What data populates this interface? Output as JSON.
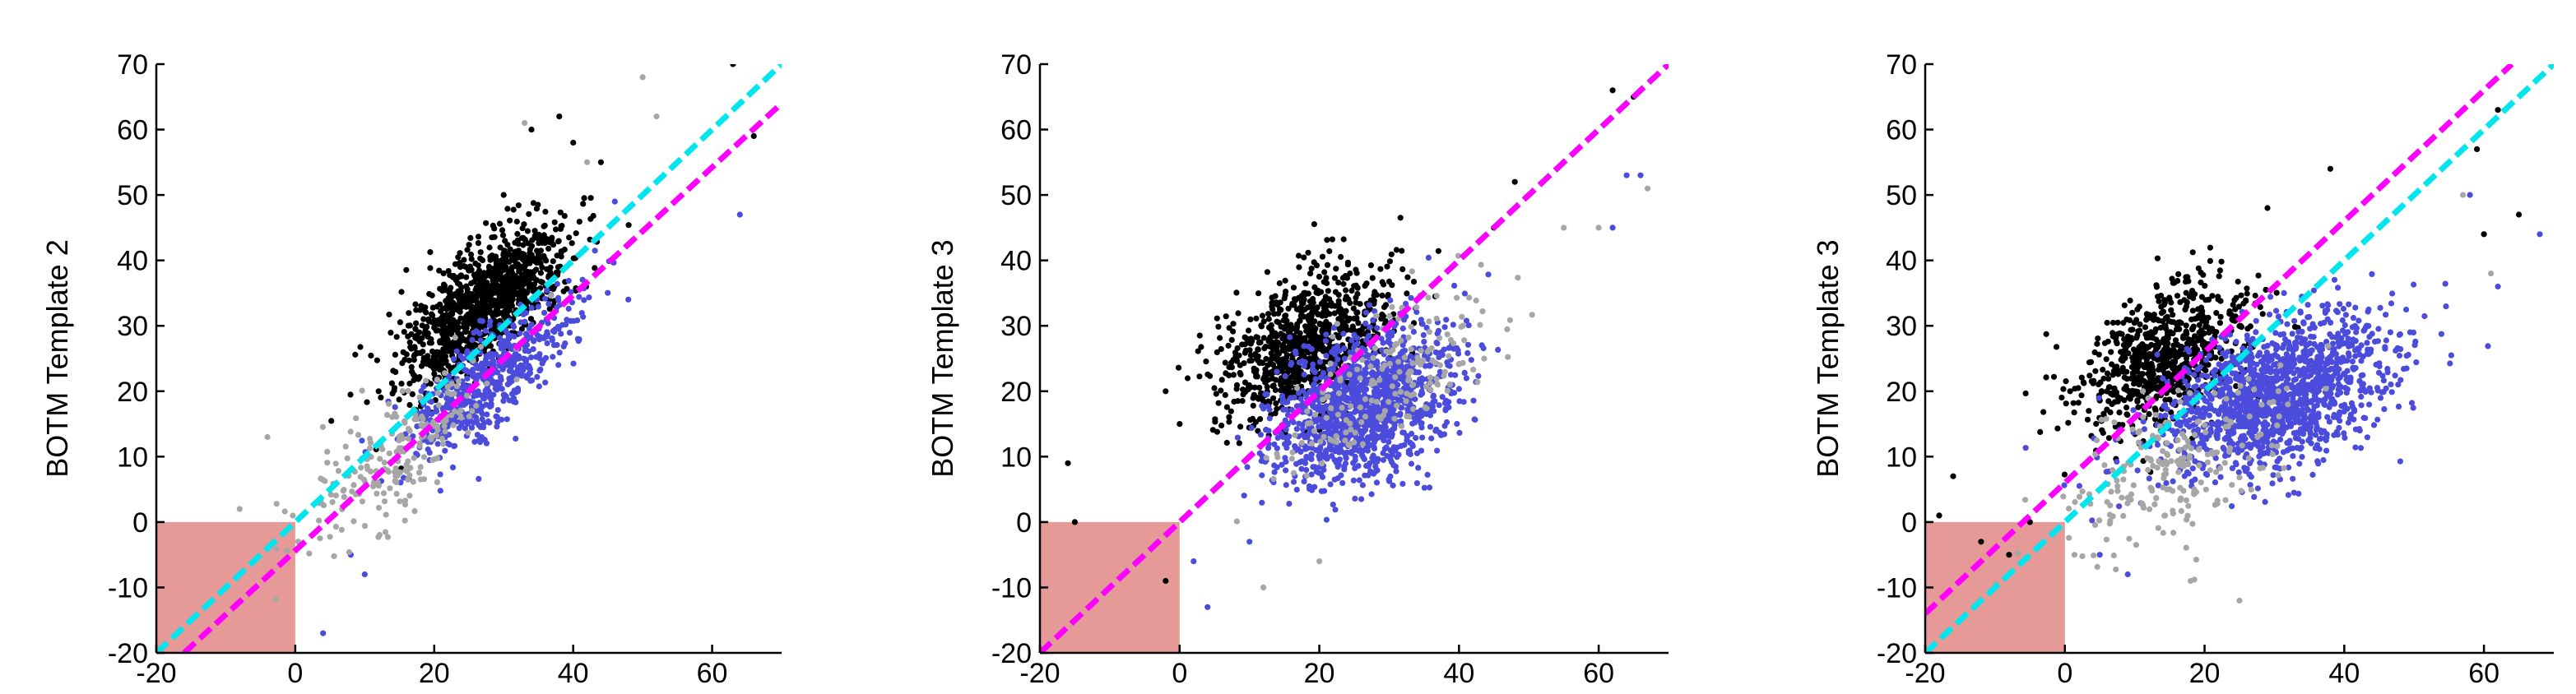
{
  "chart_data": [
    {
      "type": "scatter",
      "ylabel": "BOTM Template 2",
      "xlim": [
        -20,
        70
      ],
      "ylim": [
        -20,
        70
      ],
      "x_ticks": [
        "-20",
        "0",
        "20",
        "40",
        "60"
      ],
      "y_ticks": [
        "-20",
        "-10",
        "0",
        "10",
        "20",
        "30",
        "40",
        "50",
        "60",
        "70"
      ],
      "shaded_region": {
        "x": [
          -20,
          0
        ],
        "y": [
          -20,
          0
        ],
        "color": "#e59a98"
      },
      "lines": [
        {
          "color": "#00e5ee",
          "style": "dashed",
          "x": [
            -20,
            70
          ],
          "y": [
            -20,
            70
          ]
        },
        {
          "color": "#ff00ff",
          "style": "dashed",
          "x": [
            -16,
            70
          ],
          "y": [
            -20,
            64
          ]
        }
      ],
      "series": [
        {
          "color": "#000000",
          "cloud": {
            "count": 1100,
            "center": [
              27,
              33
            ],
            "spread_major": 8,
            "spread_minor": 3.2,
            "slope": 1.05
          },
          "outliers": [
            [
              34,
              60
            ],
            [
              40,
              58
            ],
            [
              38,
              62
            ],
            [
              63,
              70
            ],
            [
              66,
              59
            ],
            [
              44,
              55
            ],
            [
              30,
              50
            ],
            [
              12,
              20
            ]
          ]
        },
        {
          "color": "#4c4cdc",
          "cloud": {
            "count": 550,
            "center": [
              28,
              22
            ],
            "spread_major": 8,
            "spread_minor": 2.8,
            "slope": 1.0
          },
          "outliers": [
            [
              64,
              47
            ],
            [
              46,
              49
            ],
            [
              10,
              -8
            ],
            [
              4,
              -17
            ],
            [
              8,
              -5
            ]
          ]
        },
        {
          "color": "#a6a6a6",
          "cloud": {
            "count": 220,
            "center": [
              14,
              10
            ],
            "spread_major": 10,
            "spread_minor": 3.5,
            "slope": 1.0
          },
          "outliers": [
            [
              -4,
              13
            ],
            [
              50,
              68
            ],
            [
              33,
              61
            ],
            [
              52,
              62
            ],
            [
              42,
              55
            ],
            [
              -8,
              2
            ]
          ]
        }
      ]
    },
    {
      "type": "scatter",
      "ylabel": "BOTM Template 3",
      "xlim": [
        -20,
        70
      ],
      "ylim": [
        -20,
        70
      ],
      "x_ticks": [
        "-20",
        "0",
        "20",
        "40",
        "60"
      ],
      "y_ticks": [
        "-20",
        "-10",
        "0",
        "10",
        "20",
        "30",
        "40",
        "50",
        "60",
        "70"
      ],
      "shaded_region": {
        "x": [
          -20,
          0
        ],
        "y": [
          -20,
          0
        ],
        "color": "#e59a98"
      },
      "lines": [
        {
          "color": "#00e5ee",
          "style": "dashed",
          "x": [
            -20,
            70
          ],
          "y": [
            -20,
            70
          ]
        },
        {
          "color": "#ff00ff",
          "style": "dashed",
          "x": [
            -20,
            70
          ],
          "y": [
            -20,
            70
          ]
        }
      ],
      "series": [
        {
          "color": "#000000",
          "cloud": {
            "count": 900,
            "center": [
              18,
              27
            ],
            "spread_major": 7,
            "spread_minor": 4.5,
            "slope": 0.9
          },
          "outliers": [
            [
              -2,
              20
            ],
            [
              0,
              15
            ],
            [
              -16,
              9
            ],
            [
              -15,
              0
            ],
            [
              -6,
              -6
            ],
            [
              -2,
              -9
            ],
            [
              62,
              66
            ],
            [
              65,
              65
            ],
            [
              48,
              52
            ],
            [
              45,
              45
            ]
          ]
        },
        {
          "color": "#4c4cdc",
          "cloud": {
            "count": 1200,
            "center": [
              27,
              18
            ],
            "spread_major": 7,
            "spread_minor": 5,
            "slope": 0.75
          },
          "outliers": [
            [
              64,
              53
            ],
            [
              66,
              53
            ],
            [
              62,
              45
            ],
            [
              2,
              -6
            ],
            [
              4,
              -13
            ],
            [
              10,
              -3
            ]
          ]
        },
        {
          "color": "#a6a6a6",
          "cloud": {
            "count": 180,
            "center": [
              30,
              22
            ],
            "spread_major": 10,
            "spread_minor": 4,
            "slope": 0.8
          },
          "outliers": [
            [
              67,
              51
            ],
            [
              60,
              45
            ],
            [
              55,
              45
            ],
            [
              12,
              -10
            ],
            [
              20,
              -6
            ]
          ]
        }
      ]
    },
    {
      "type": "scatter",
      "ylabel": "BOTM Template 3",
      "xlim": [
        -20,
        70
      ],
      "ylim": [
        -20,
        70
      ],
      "x_ticks": [
        "-20",
        "0",
        "20",
        "40",
        "60"
      ],
      "y_ticks": [
        "-20",
        "-10",
        "0",
        "10",
        "20",
        "30",
        "40",
        "50",
        "60",
        "70"
      ],
      "shaded_region": {
        "x": [
          -20,
          0
        ],
        "y": [
          -20,
          0
        ],
        "color": "#e59a98"
      },
      "lines": [
        {
          "color": "#ff00ff",
          "style": "dashed",
          "x": [
            -20,
            64
          ],
          "y": [
            -14,
            70
          ]
        },
        {
          "color": "#00e5ee",
          "style": "dashed",
          "x": [
            -20,
            70
          ],
          "y": [
            -20,
            70
          ]
        }
      ],
      "series": [
        {
          "color": "#000000",
          "cloud": {
            "count": 750,
            "center": [
              14,
              25
            ],
            "spread_major": 7,
            "spread_minor": 4.2,
            "slope": 0.9
          },
          "outliers": [
            [
              -18,
              1
            ],
            [
              -12,
              -3
            ],
            [
              -8,
              -5
            ],
            [
              -16,
              7
            ],
            [
              -5,
              0
            ],
            [
              62,
              63
            ],
            [
              65,
              47
            ],
            [
              60,
              44
            ],
            [
              59,
              57
            ],
            [
              38,
              54
            ],
            [
              29,
              48
            ]
          ]
        },
        {
          "color": "#4c4cdc",
          "cloud": {
            "count": 1400,
            "center": [
              30,
              19
            ],
            "spread_major": 9,
            "spread_minor": 5,
            "slope": 0.5
          },
          "outliers": [
            [
              62,
              36
            ],
            [
              68,
              44
            ],
            [
              58,
              50
            ],
            [
              5,
              -5
            ],
            [
              9,
              -8
            ]
          ]
        },
        {
          "color": "#a6a6a6",
          "cloud": {
            "count": 220,
            "center": [
              15,
              8
            ],
            "spread_major": 9,
            "spread_minor": 4.5,
            "slope": 0.7
          },
          "outliers": [
            [
              25,
              -12
            ],
            [
              18,
              -9
            ],
            [
              61,
              38
            ],
            [
              57,
              50
            ]
          ]
        }
      ]
    }
  ]
}
